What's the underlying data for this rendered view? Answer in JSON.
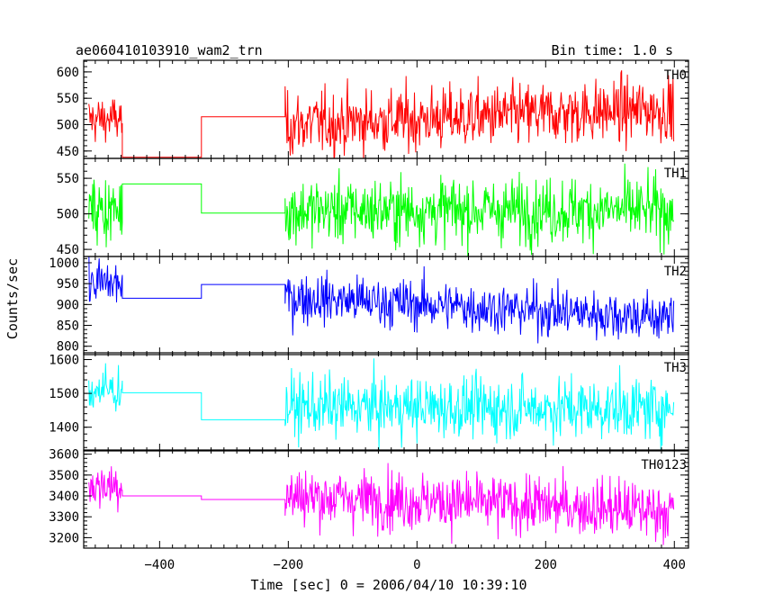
{
  "chart_data": {
    "type": "line",
    "title": "ae060410103910_wam2_trn",
    "bin_time_label": "Bin time: 1.0 s",
    "xlabel": "Time [sec] 0 = 2006/04/10 10:39:10",
    "ylabel": "Counts/sec",
    "xlim": [
      -518,
      422
    ],
    "x_ticks": [
      -400,
      -200,
      0,
      200,
      400
    ],
    "gaps": [
      [
        -458,
        -205
      ]
    ],
    "panels": [
      {
        "name": "TH0",
        "color": "#ff0000",
        "ylim": [
          436,
          622
        ],
        "y_ticks": [
          450,
          500,
          550,
          600
        ],
        "pre_mean": 510,
        "pre_noise": 22,
        "gap_steps": [
          {
            "x": [
              -458,
              -335
            ],
            "y": 438
          },
          {
            "x": [
              -335,
              -205
            ],
            "y": 515
          }
        ],
        "post_start": 500,
        "post_end": 530,
        "post_noise": 30
      },
      {
        "name": "TH1",
        "color": "#00ff00",
        "ylim": [
          440,
          578
        ],
        "y_ticks": [
          450,
          500,
          550
        ],
        "pre_mean": 505,
        "pre_noise": 23,
        "gap_steps": [
          {
            "x": [
              -458,
              -335
            ],
            "y": 542
          },
          {
            "x": [
              -335,
              -205
            ],
            "y": 501
          }
        ],
        "post_start": 505,
        "post_end": 505,
        "post_noise": 23
      },
      {
        "name": "TH2",
        "color": "#0000ff",
        "ylim": [
          780,
          1015
        ],
        "y_ticks": [
          800,
          850,
          900,
          950,
          1000
        ],
        "pre_mean": 950,
        "pre_noise": 30,
        "gap_steps": [
          {
            "x": [
              -458,
              -335
            ],
            "y": 915
          },
          {
            "x": [
              -335,
              -205
            ],
            "y": 948
          }
        ],
        "post_start": 918,
        "post_end": 868,
        "post_noise": 30
      },
      {
        "name": "TH3",
        "color": "#00ffff",
        "ylim": [
          1330,
          1620
        ],
        "y_ticks": [
          1400,
          1500,
          1600
        ],
        "pre_mean": 1510,
        "pre_noise": 35,
        "gap_steps": [
          {
            "x": [
              -458,
              -335
            ],
            "y": 1502
          },
          {
            "x": [
              -335,
              -205
            ],
            "y": 1422
          }
        ],
        "post_start": 1460,
        "post_end": 1455,
        "post_noise": 45
      },
      {
        "name": "TH0123",
        "color": "#ff00ff",
        "ylim": [
          3150,
          3620
        ],
        "y_ticks": [
          3200,
          3300,
          3400,
          3500,
          3600
        ],
        "pre_mean": 3450,
        "pre_noise": 55,
        "gap_steps": [
          {
            "x": [
              -458,
              -335
            ],
            "y": 3400
          },
          {
            "x": [
              -335,
              -205
            ],
            "y": 3383
          }
        ],
        "post_start": 3400,
        "post_end": 3330,
        "post_noise": 70
      }
    ]
  }
}
